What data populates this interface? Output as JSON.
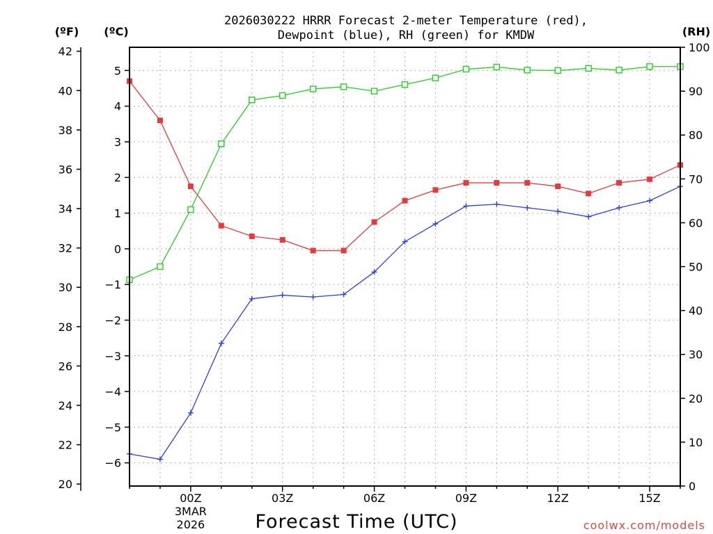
{
  "chart_data": {
    "type": "line",
    "title_lines": [
      "2026030222 HRRR Forecast 2-meter Temperature (red),",
      "Dewpoint (blue), RH (green) for KMDW"
    ],
    "xlabel": "Forecast Time (UTC)",
    "credit": "coolwx.com/models",
    "unit_labels": {
      "fahrenheit": "(ºF)",
      "celsius": "(ºC)",
      "rh": "(RH)"
    },
    "x": [
      -2,
      -1,
      0,
      1,
      2,
      3,
      4,
      5,
      6,
      7,
      8,
      9,
      10,
      11,
      12,
      13,
      14,
      15,
      16
    ],
    "xlim": [
      -2,
      16
    ],
    "x_ticks": [
      {
        "x": 0,
        "label": "00Z",
        "sublabel_1": "3MAR",
        "sublabel_2": "2026"
      },
      {
        "x": 3,
        "label": "03Z",
        "sublabel_1": "",
        "sublabel_2": ""
      },
      {
        "x": 6,
        "label": "06Z",
        "sublabel_1": "",
        "sublabel_2": ""
      },
      {
        "x": 9,
        "label": "09Z",
        "sublabel_1": "",
        "sublabel_2": ""
      },
      {
        "x": 12,
        "label": "12Z",
        "sublabel_1": "",
        "sublabel_2": ""
      },
      {
        "x": 15,
        "label": "15Z",
        "sublabel_1": "",
        "sublabel_2": ""
      }
    ],
    "celsius_axis": {
      "ylim": [
        -6.65,
        5.65
      ],
      "ticks": [
        -6,
        -5,
        -4,
        -3,
        -2,
        -1,
        0,
        1,
        2,
        3,
        4,
        5
      ]
    },
    "fahrenheit_axis": {
      "ylim": [
        19.9,
        42.2
      ],
      "ticks": [
        20,
        22,
        24,
        26,
        28,
        30,
        32,
        34,
        36,
        38,
        40,
        42
      ]
    },
    "rh_axis": {
      "ylim": [
        0,
        100
      ],
      "ticks": [
        0,
        10,
        20,
        30,
        40,
        50,
        60,
        70,
        80,
        90,
        100
      ]
    },
    "grid": true,
    "series": [
      {
        "name": "Temperature",
        "axis": "celsius",
        "color": "#e8393b",
        "marker": "filled-square",
        "values": [
          4.7,
          3.6,
          1.75,
          0.65,
          0.35,
          0.25,
          -0.05,
          -0.05,
          0.75,
          1.35,
          1.65,
          1.85,
          1.85,
          1.85,
          1.75,
          1.55,
          1.85,
          1.95,
          2.35
        ]
      },
      {
        "name": "Dewpoint",
        "axis": "celsius",
        "color": "#2a3fe0",
        "marker": "plus",
        "values": [
          -5.75,
          -5.9,
          -4.6,
          -2.65,
          -1.4,
          -1.3,
          -1.35,
          -1.28,
          -0.65,
          0.2,
          0.7,
          1.2,
          1.25,
          1.15,
          1.05,
          0.9,
          1.15,
          1.35,
          1.75
        ]
      },
      {
        "name": "RH",
        "axis": "rh",
        "color": "#22d021",
        "marker": "open-square",
        "values": [
          47,
          50,
          63,
          78,
          88,
          89,
          90.5,
          91,
          90,
          91.5,
          93,
          95,
          95.5,
          94.8,
          94.7,
          95.2,
          94.8,
          95.6,
          95.6
        ]
      }
    ]
  }
}
